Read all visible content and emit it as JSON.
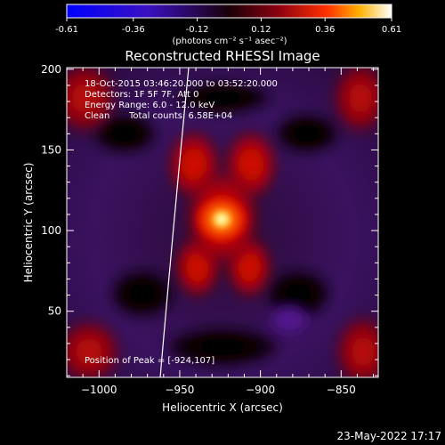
{
  "colorbar": {
    "ticks": [
      "-0.61",
      "-0.36",
      "-0.12",
      "0.12",
      "0.36",
      "0.61"
    ],
    "units": "(photons cm⁻² s⁻¹ asec⁻²)"
  },
  "chart_data": {
    "type": "heatmap",
    "title": "Reconstructed RHESSI Image",
    "xlabel": "Heliocentric X (arcsec)",
    "ylabel": "Heliocentric Y (arcsec)",
    "xlim": [
      -1020,
      -827
    ],
    "ylim": [
      9,
      201
    ],
    "x_ticks": [
      -1000,
      -950,
      -900,
      -850
    ],
    "y_ticks": [
      50,
      100,
      150,
      200
    ],
    "value_range": [
      -0.61,
      0.61
    ],
    "colormap": "rhessi-blue-purple-red-yellow-white",
    "annotations": {
      "time_range": "18-Oct-2015 03:46:20.000 to 03:52:20.000",
      "detectors": "Detectors: 1F 5F 7F, Att 0",
      "energy": "Energy Range: 6.0 - 12.0 keV",
      "algorithm": "Clean",
      "counts": "Total counts: 6.58E+04",
      "peak": "Position of Peak = [-924,107]"
    },
    "peak": {
      "x": -924,
      "y": 107
    }
  },
  "footer": {
    "date": "23-May-2022 17:17"
  },
  "colors": {
    "background": "#000000",
    "axes": "#ffffff"
  }
}
